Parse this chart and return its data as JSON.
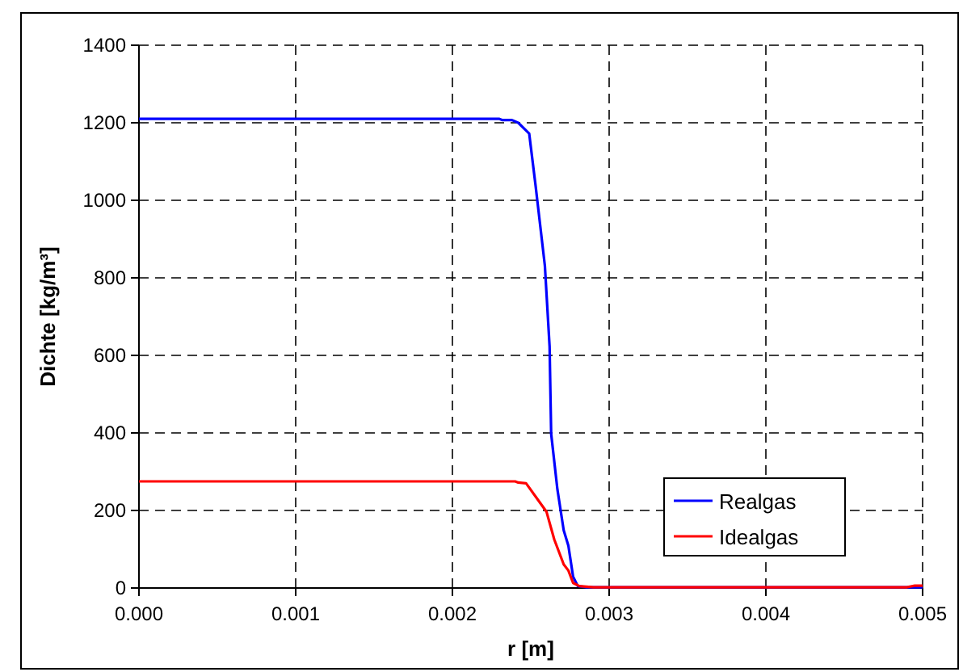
{
  "chart_data": {
    "type": "line",
    "xlabel": "r [m]",
    "ylabel": "Dichte [kg/m³]",
    "xlim": [
      0,
      0.005
    ],
    "xticks": [
      {
        "value": 0,
        "label": "0.000"
      },
      0.001,
      0.002,
      0.003,
      0.004,
      {
        "value": 0.005,
        "label": "0.005"
      }
    ],
    "ylim": [
      0,
      1400
    ],
    "yticks": [
      0,
      200,
      400,
      600,
      800,
      1000,
      1200,
      1400
    ],
    "grid": true,
    "legend": "bottom right",
    "line_style": "solid",
    "marker": "none",
    "series": [
      {
        "name": "Realgas",
        "color": "#0000ff",
        "x": [
          0,
          0.0023,
          0.00232,
          0.00238,
          0.00242,
          0.00249,
          0.00253,
          0.00259,
          0.00262,
          0.00263,
          0.00267,
          0.00271,
          0.00274,
          0.00277,
          0.0028,
          0.00285,
          0.0049,
          0.005
        ],
        "values": [
          1210,
          1210,
          1207,
          1207,
          1200,
          1172,
          1040,
          831,
          623,
          398,
          254,
          149,
          109,
          29,
          5,
          2,
          2,
          2
        ]
      },
      {
        "name": "Idealgas",
        "color": "#ff0000",
        "x": [
          0,
          0.0024,
          0.00242,
          0.00247,
          0.00255,
          0.0026,
          0.00265,
          0.00271,
          0.00274,
          0.00277,
          0.00281,
          0.0029,
          0.0049,
          0.00495,
          0.005
        ],
        "values": [
          275,
          275,
          272,
          270,
          225,
          197,
          125,
          61,
          45,
          13,
          5,
          2,
          2,
          6,
          6
        ]
      }
    ]
  }
}
